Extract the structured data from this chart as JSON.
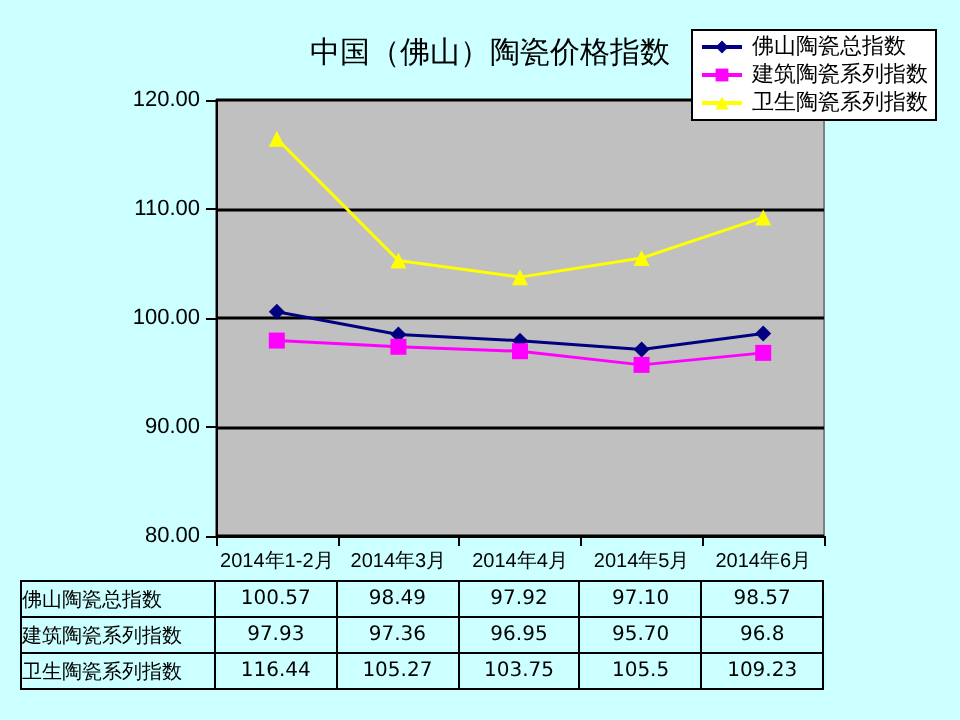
{
  "chart_data": {
    "type": "line",
    "title": "中国（佛山）陶瓷价格指数",
    "categories": [
      "2014年1-2月",
      "2014年3月",
      "2014年4月",
      "2014年5月",
      "2014年6月"
    ],
    "series": [
      {
        "name": "佛山陶瓷总指数",
        "color": "#000080",
        "marker": "diamond",
        "values": [
          100.57,
          98.49,
          97.92,
          97.1,
          98.57
        ],
        "value_labels": [
          "100.57",
          "98.49",
          "97.92",
          "97.10",
          "98.57"
        ]
      },
      {
        "name": "建筑陶瓷系列指数",
        "color": "#ff00ff",
        "marker": "square",
        "values": [
          97.93,
          97.36,
          96.95,
          95.7,
          96.8
        ],
        "value_labels": [
          "97.93",
          "97.36",
          "96.95",
          "95.70",
          "96.8"
        ]
      },
      {
        "name": "卫生陶瓷系列指数",
        "color": "#ffff00",
        "marker": "triangle",
        "values": [
          116.44,
          105.27,
          103.75,
          105.5,
          109.23
        ],
        "value_labels": [
          "116.44",
          "105.27",
          "103.75",
          "105.5",
          "109.23"
        ]
      }
    ],
    "ylim": [
      80,
      120
    ],
    "yticks": [
      {
        "value": 80,
        "label": "80.00"
      },
      {
        "value": 90,
        "label": "90.00"
      },
      {
        "value": 100,
        "label": "100.00"
      },
      {
        "value": 110,
        "label": "110.00"
      },
      {
        "value": 120,
        "label": "120.00"
      }
    ],
    "grid": "y",
    "legend": "top right"
  }
}
